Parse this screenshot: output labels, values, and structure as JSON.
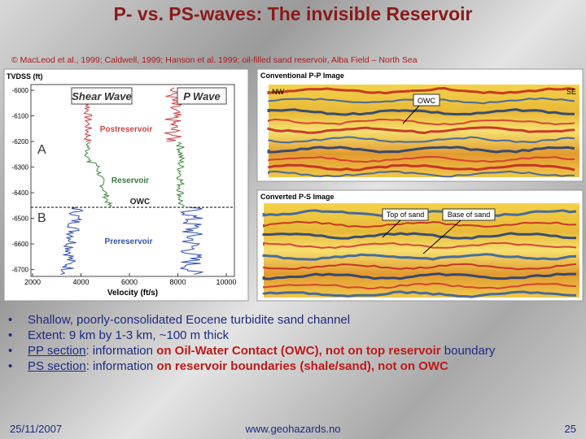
{
  "header": {
    "title": "P- vs. PS-waves: The invisible Reservoir",
    "citation": "© MacLeod et al., 1999; Caldwell, 1999;  Hanson et al. 1999; oil-filled sand reservoir, Alba Field – North Sea"
  },
  "well_log": {
    "depth_axis_label": "TVDSS (ft)",
    "depth_ticks": [
      -6000,
      -6100,
      -6200,
      -6300,
      -6400,
      -6500,
      -6600,
      -6700
    ],
    "velocity_ticks": [
      2000,
      4000,
      6000,
      8000,
      10000
    ],
    "velocity_axis_label": "Velocity (ft/s)",
    "track_labels": [
      "Shear Wave",
      "P Wave"
    ],
    "zone_labels": [
      "Postreservoir",
      "Reservoir",
      "OWC",
      "Prereservoir"
    ],
    "markers": [
      "A",
      "B"
    ]
  },
  "pp_image": {
    "title": "Conventional P-P Image",
    "left": "NW",
    "right": "SE",
    "annotation": "OWC"
  },
  "ps_image": {
    "title": "Converted P-S Image",
    "annotations": [
      "Top of sand",
      "Base of sand"
    ]
  },
  "bullets": [
    [
      {
        "text": "Shallow, poorly-consolidated Eocene turbidite sand channel",
        "style": "plain"
      }
    ],
    [
      {
        "text": "Extent: 9 km by 1-3 km, ~100 m thick",
        "style": "plain"
      }
    ],
    [
      {
        "text": "PP section",
        "style": "link"
      },
      {
        "text": ": information ",
        "style": "plain"
      },
      {
        "text": "on Oil-Water Contact (OWC), not on top reservoir",
        "style": "emph"
      },
      {
        "text": " boundary",
        "style": "plain"
      }
    ],
    [
      {
        "text": "PS section",
        "style": "link"
      },
      {
        "text": ": information ",
        "style": "plain"
      },
      {
        "text": "on reservoir boundaries (shale/sand), not on OWC",
        "style": "emph"
      }
    ]
  ],
  "footer": {
    "date": "25/11/2007",
    "url": "www.geohazards.no",
    "page": 25
  }
}
